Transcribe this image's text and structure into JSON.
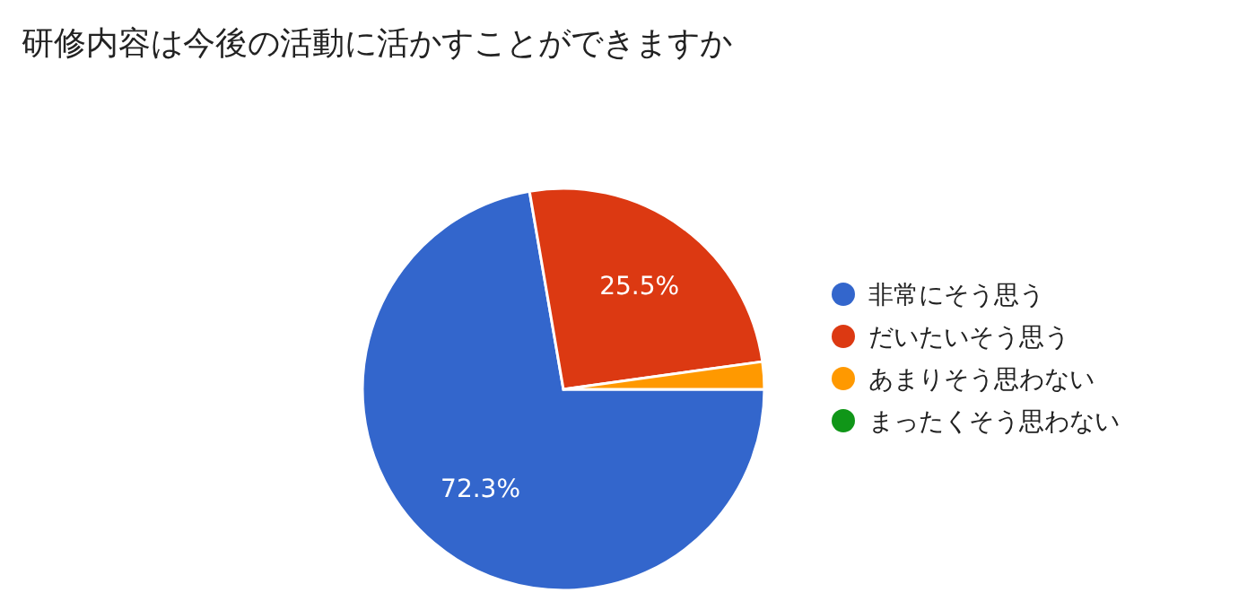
{
  "chart_data": {
    "type": "pie",
    "title": "研修内容は今後の活動に活かすことができますか",
    "categories": [
      "非常にそう思う",
      "だいたいそう思う",
      "あまりそう思わない",
      "まったくそう思わない"
    ],
    "values": [
      72.3,
      25.5,
      2.2,
      0
    ],
    "colors": [
      "#3366cc",
      "#dc3912",
      "#ff9900",
      "#109618"
    ],
    "value_labels": [
      "72.3%",
      "25.5%",
      null,
      null
    ],
    "legend": "right"
  }
}
